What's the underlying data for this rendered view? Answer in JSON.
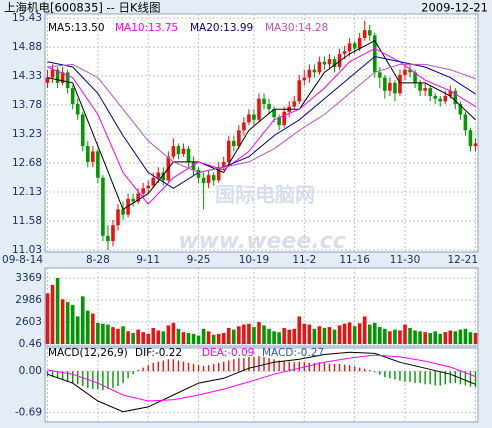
{
  "watermark": [
    "国际电脑网",
    "www.weee.cc"
  ],
  "chart_data": [
    {
      "type": "candlestick",
      "title": "上海机电[600835] -- 日K线图",
      "date": "2009-12-21",
      "categories": [
        "09-8-14",
        null,
        null,
        null,
        null,
        null,
        null,
        null,
        null,
        null,
        "8-28",
        null,
        null,
        null,
        null,
        null,
        null,
        null,
        null,
        null,
        "9-11",
        null,
        null,
        null,
        null,
        null,
        null,
        null,
        null,
        null,
        "9-25",
        null,
        null,
        null,
        null,
        null,
        null,
        null,
        null,
        null,
        null,
        "10-19",
        null,
        null,
        null,
        null,
        null,
        null,
        null,
        null,
        null,
        "11-2",
        null,
        null,
        null,
        null,
        null,
        null,
        null,
        null,
        null,
        "11-16",
        null,
        null,
        null,
        null,
        null,
        null,
        null,
        null,
        null,
        "11-30",
        null,
        null,
        null,
        null,
        null,
        null,
        null,
        null,
        null,
        null,
        null,
        null,
        null,
        "12-21"
      ],
      "open": [
        14.2,
        14.3,
        14.45,
        14.2,
        14.4,
        14.1,
        13.8,
        13.6,
        13.0,
        12.7,
        12.9,
        12.4,
        11.3,
        11.2,
        11.5,
        11.8,
        11.7,
        12.0,
        11.95,
        12.1,
        12.2,
        12.25,
        12.4,
        12.5,
        12.35,
        12.8,
        13.0,
        12.85,
        12.95,
        12.7,
        12.55,
        12.4,
        12.3,
        12.45,
        12.35,
        12.6,
        12.7,
        13.1,
        13.0,
        13.3,
        13.45,
        13.6,
        13.5,
        13.9,
        13.8,
        13.7,
        13.55,
        13.4,
        13.65,
        13.75,
        13.85,
        14.25,
        14.3,
        14.45,
        14.4,
        14.6,
        14.55,
        14.65,
        14.5,
        14.75,
        14.8,
        14.95,
        14.85,
        15.05,
        15.2,
        15.1,
        14.4,
        14.3,
        14.05,
        14.2,
        14.0,
        14.35,
        14.45,
        14.4,
        14.2,
        14.05,
        14.1,
        13.95,
        13.9,
        13.85,
        13.95,
        14.05,
        13.8,
        13.6,
        13.3,
        13.0
      ],
      "high": [
        14.45,
        14.55,
        14.5,
        14.5,
        14.45,
        14.15,
        13.9,
        13.65,
        13.1,
        13.0,
        12.95,
        12.45,
        11.5,
        11.6,
        11.9,
        11.95,
        12.1,
        12.1,
        12.2,
        12.3,
        12.35,
        12.5,
        12.6,
        12.6,
        12.9,
        13.15,
        13.05,
        13.05,
        13.0,
        12.8,
        12.6,
        12.5,
        12.55,
        12.5,
        12.7,
        12.8,
        13.2,
        13.2,
        13.4,
        13.55,
        13.7,
        13.7,
        14.0,
        14.0,
        13.9,
        13.75,
        13.6,
        13.75,
        13.85,
        13.95,
        14.35,
        14.45,
        14.55,
        14.55,
        14.7,
        14.7,
        14.75,
        14.7,
        14.85,
        14.9,
        15.05,
        15.0,
        15.15,
        15.38,
        15.3,
        15.15,
        14.5,
        14.35,
        14.3,
        14.25,
        14.45,
        14.55,
        14.55,
        14.45,
        14.25,
        14.2,
        14.15,
        14.0,
        13.95,
        14.05,
        14.15,
        14.1,
        13.85,
        13.65,
        13.35,
        13.15
      ],
      "low": [
        14.1,
        14.2,
        14.1,
        14.15,
        14.0,
        13.7,
        13.5,
        12.9,
        12.6,
        12.6,
        12.3,
        11.2,
        11.03,
        11.1,
        11.4,
        11.6,
        11.65,
        11.85,
        11.9,
        12.0,
        12.1,
        12.2,
        12.3,
        12.25,
        12.3,
        12.75,
        12.75,
        12.8,
        12.6,
        12.45,
        12.3,
        11.8,
        12.2,
        12.25,
        12.3,
        12.55,
        12.65,
        12.9,
        12.95,
        13.2,
        13.4,
        13.4,
        13.45,
        13.7,
        13.6,
        13.45,
        13.3,
        13.35,
        13.55,
        13.7,
        13.8,
        14.15,
        14.2,
        14.3,
        14.35,
        14.45,
        14.45,
        14.4,
        14.45,
        14.65,
        14.7,
        14.75,
        14.8,
        15.0,
        15.0,
        14.3,
        14.1,
        13.9,
        13.95,
        13.85,
        13.95,
        14.25,
        14.3,
        14.1,
        13.95,
        13.95,
        13.85,
        13.8,
        13.75,
        13.8,
        13.9,
        13.7,
        13.5,
        13.2,
        12.9,
        12.9
      ],
      "close": [
        14.3,
        14.45,
        14.2,
        14.4,
        14.1,
        13.8,
        13.6,
        13.0,
        12.7,
        12.9,
        12.4,
        11.3,
        11.2,
        11.5,
        11.8,
        11.7,
        12.0,
        11.95,
        12.1,
        12.2,
        12.25,
        12.4,
        12.5,
        12.35,
        12.8,
        13.0,
        12.85,
        12.95,
        12.7,
        12.55,
        12.4,
        12.3,
        12.45,
        12.35,
        12.6,
        12.7,
        13.1,
        13.0,
        13.3,
        13.45,
        13.6,
        13.5,
        13.9,
        13.8,
        13.7,
        13.55,
        13.4,
        13.65,
        13.75,
        13.85,
        14.25,
        14.3,
        14.45,
        14.4,
        14.6,
        14.55,
        14.65,
        14.5,
        14.75,
        14.8,
        14.95,
        14.85,
        15.05,
        15.2,
        15.1,
        14.4,
        14.3,
        14.05,
        14.2,
        14.0,
        14.35,
        14.45,
        14.4,
        14.2,
        14.05,
        14.1,
        13.95,
        13.9,
        13.85,
        13.95,
        14.05,
        13.8,
        13.6,
        13.3,
        13.0,
        13.05
      ],
      "up_color": "#ee1111",
      "down_color": "#009900",
      "series": [
        {
          "name": "MA5:13.50",
          "color": "#000000",
          "x": [
            0,
            5,
            10,
            15,
            20,
            25,
            30,
            35,
            40,
            45,
            50,
            55,
            60,
            65,
            70,
            75,
            80,
            85
          ],
          "values": [
            14.3,
            14.2,
            13.0,
            11.8,
            12.1,
            12.7,
            12.7,
            12.5,
            13.3,
            13.7,
            13.7,
            14.4,
            14.75,
            15.0,
            14.2,
            14.2,
            13.95,
            13.5
          ]
        },
        {
          "name": "MA10:13.75",
          "color": "#ff00ff",
          "x": [
            0,
            5,
            10,
            15,
            20,
            25,
            30,
            35,
            40,
            45,
            50,
            55,
            60,
            65,
            70,
            75,
            80,
            85
          ],
          "values": [
            14.5,
            14.3,
            13.6,
            12.5,
            11.9,
            12.4,
            12.7,
            12.55,
            12.9,
            13.5,
            13.7,
            14.1,
            14.6,
            14.85,
            14.6,
            14.25,
            14.05,
            13.75
          ]
        },
        {
          "name": "MA20:13.99",
          "color": "#000099",
          "x": [
            0,
            5,
            10,
            15,
            20,
            25,
            30,
            35,
            40,
            45,
            50,
            55,
            60,
            65,
            70,
            75,
            80,
            85
          ],
          "values": [
            14.6,
            14.5,
            14.0,
            13.2,
            12.5,
            12.2,
            12.5,
            12.6,
            12.8,
            13.2,
            13.5,
            13.9,
            14.3,
            14.7,
            14.6,
            14.5,
            14.3,
            13.99
          ]
        },
        {
          "name": "MA30:14.28",
          "color": "#bb55bb",
          "x": [
            0,
            5,
            10,
            15,
            20,
            25,
            30,
            35,
            40,
            45,
            50,
            55,
            60,
            65,
            70,
            75,
            80,
            85
          ],
          "values": [
            14.5,
            14.55,
            14.3,
            13.7,
            13.1,
            12.7,
            12.5,
            12.6,
            12.7,
            12.95,
            13.3,
            13.6,
            14.0,
            14.4,
            14.55,
            14.55,
            14.45,
            14.28
          ]
        }
      ],
      "ylim": [
        11.03,
        15.43
      ],
      "yticks": [
        15.43,
        14.88,
        14.33,
        13.78,
        13.23,
        12.68,
        12.13,
        11.58,
        11.03
      ],
      "grid": true
    },
    {
      "type": "bar",
      "values": [
        3100,
        3250,
        3369,
        3000,
        2950,
        2900,
        2700,
        3050,
        2800,
        2750,
        2500,
        2400,
        2300,
        2000,
        1800,
        2100,
        1500,
        1300,
        1700,
        1400,
        1200,
        1900,
        1600,
        1500,
        2200,
        2500,
        1800,
        1400,
        1300,
        1200,
        1000,
        1800,
        1500,
        1100,
        1200,
        1300,
        1900,
        1700,
        2100,
        2300,
        2400,
        2000,
        2600,
        2200,
        1800,
        1500,
        1400,
        1900,
        1700,
        1800,
        2700,
        2400,
        2300,
        1800,
        2100,
        1900,
        2000,
        1700,
        2200,
        2400,
        2550,
        2100,
        2450,
        2700,
        2300,
        2500,
        2000,
        1800,
        1500,
        1700,
        1600,
        2300,
        1900,
        1600,
        1500,
        1400,
        1300,
        1500,
        1200,
        1400,
        1600,
        1500,
        1700,
        1800,
        1400,
        1300
      ],
      "ylim": [
        0.46,
        3369
      ],
      "yticks": [
        0.46,
        2603,
        2986,
        3369
      ],
      "grid": true
    },
    {
      "type": "macd",
      "title": "MACD(12,26,9)",
      "name": "MACD:-0.27",
      "color": "#3355cc",
      "up_color": "#ee1111",
      "down_color": "#009900",
      "values": [
        -0.08,
        -0.1,
        -0.12,
        -0.15,
        -0.18,
        -0.2,
        -0.22,
        -0.25,
        -0.28,
        -0.3,
        -0.3,
        -0.32,
        -0.3,
        -0.28,
        -0.25,
        -0.2,
        -0.12,
        -0.05,
        0.02,
        0.06,
        0.1,
        0.14,
        0.16,
        0.18,
        0.2,
        0.2,
        0.18,
        0.16,
        0.14,
        0.12,
        0.1,
        0.09,
        0.1,
        0.12,
        0.14,
        0.16,
        0.18,
        0.2,
        0.22,
        0.22,
        0.24,
        0.24,
        0.25,
        0.24,
        0.22,
        0.2,
        0.18,
        0.17,
        0.16,
        0.15,
        0.16,
        0.15,
        0.14,
        0.14,
        0.15,
        0.14,
        0.13,
        0.12,
        0.12,
        0.11,
        0.1,
        0.08,
        0.06,
        0.04,
        0.02,
        -0.02,
        -0.06,
        -0.1,
        -0.12,
        -0.14,
        -0.16,
        -0.18,
        -0.18,
        -0.2,
        -0.2,
        -0.22,
        -0.22,
        -0.24,
        -0.24,
        -0.22,
        -0.2,
        -0.2,
        -0.22,
        -0.24,
        -0.26,
        -0.27
      ],
      "series": [
        {
          "name": "DIF:-0.22",
          "color": "#000000",
          "x": [
            0,
            5,
            10,
            15,
            20,
            25,
            30,
            35,
            40,
            45,
            50,
            55,
            60,
            65,
            70,
            75,
            80,
            85
          ],
          "values": [
            -0.05,
            -0.2,
            -0.5,
            -0.68,
            -0.6,
            -0.4,
            -0.2,
            -0.12,
            0.05,
            0.15,
            0.2,
            0.28,
            0.32,
            0.3,
            0.15,
            0.05,
            -0.05,
            -0.22
          ]
        },
        {
          "name": "DEA:-0.09",
          "color": "#ff00ff",
          "x": [
            0,
            5,
            10,
            15,
            20,
            25,
            30,
            35,
            40,
            45,
            50,
            55,
            60,
            65,
            70,
            75,
            80,
            85
          ],
          "values": [
            0.02,
            -0.05,
            -0.2,
            -0.4,
            -0.5,
            -0.48,
            -0.4,
            -0.3,
            -0.18,
            -0.05,
            0.05,
            0.15,
            0.22,
            0.27,
            0.24,
            0.17,
            0.07,
            -0.09
          ]
        }
      ],
      "ylim": [
        -0.82,
        0.39
      ],
      "yticks": [
        {
          "value": 0,
          "label": "0.00"
        },
        -0.69
      ],
      "grid": true
    }
  ]
}
